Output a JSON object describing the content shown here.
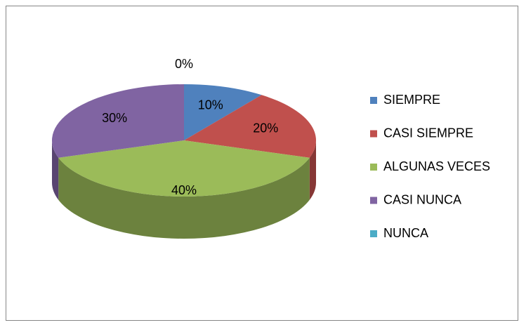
{
  "chart_data": {
    "type": "pie",
    "categories": [
      "SIEMPRE",
      "CASI SIEMPRE",
      "ALGUNAS VECES",
      "CASI NUNCA",
      "NUNCA"
    ],
    "values": [
      10,
      20,
      40,
      30,
      0
    ],
    "value_labels": [
      "10%",
      "20%",
      "40%",
      "30%",
      "0%"
    ],
    "colors": [
      "#4f81bd",
      "#c0504d",
      "#9bbb59",
      "#8064a2",
      "#4bacc6"
    ],
    "legend": "right"
  }
}
